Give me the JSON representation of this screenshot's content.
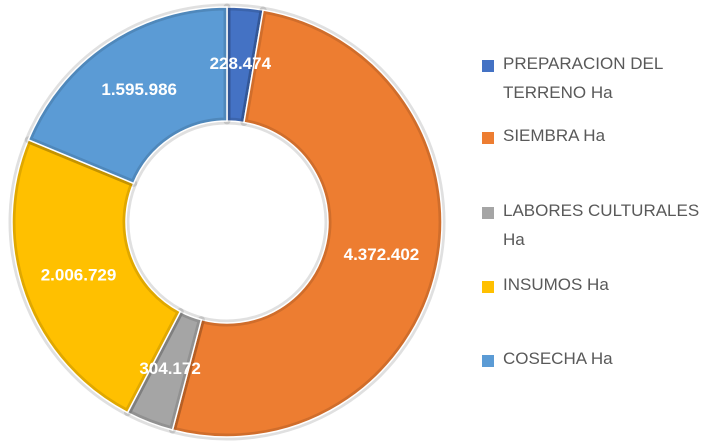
{
  "chart_data": {
    "type": "donut",
    "categories": [
      "PREPARACION DEL TERRENO Ha",
      "SIEMBRA Ha",
      "LABORES CULTURALES Ha",
      "INSUMOS Ha",
      "COSECHA Ha"
    ],
    "values": [
      228474,
      4372402,
      304172,
      2006729,
      1595986
    ],
    "value_labels": [
      "228.474",
      "4.372.402",
      "304.172",
      "2.006.729",
      "1.595.986"
    ],
    "colors": [
      "#4472c4",
      "#ed7d31",
      "#a5a5a5",
      "#ffc000",
      "#5b9bd5"
    ],
    "legend": "right"
  }
}
